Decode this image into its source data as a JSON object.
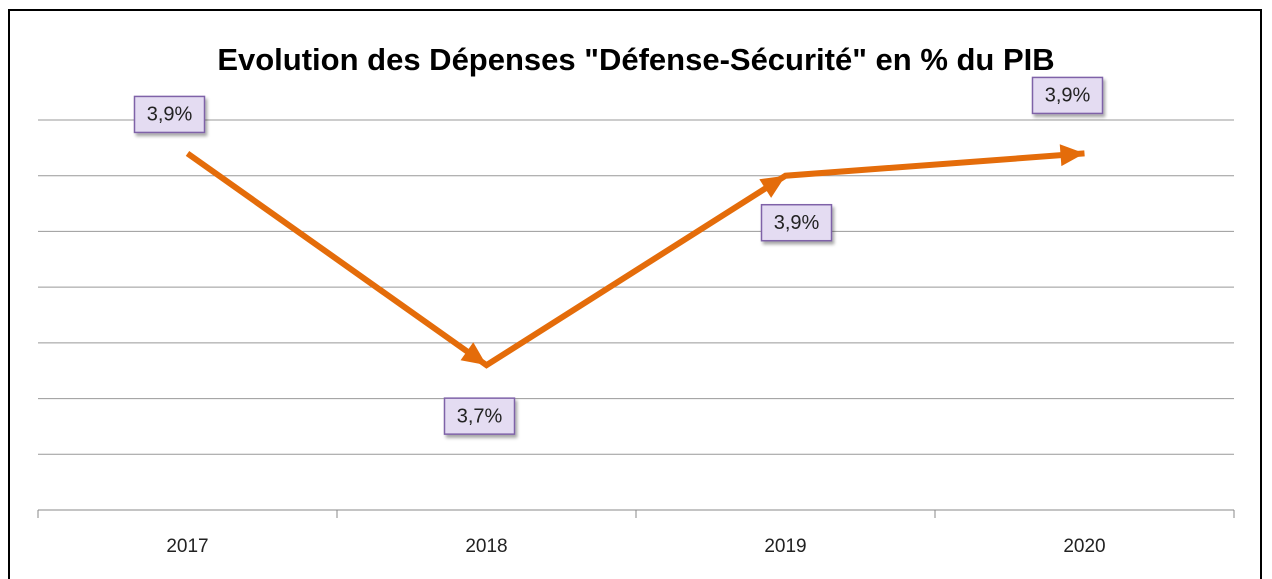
{
  "chart_data": {
    "type": "line",
    "title": "Evolution des Dépenses \"Défense-Sécurité\" en % du PIB",
    "categories": [
      "2017",
      "2018",
      "2019",
      "2020"
    ],
    "values": [
      3.92,
      3.73,
      3.9,
      3.92
    ],
    "value_labels": [
      "3,9%",
      "3,7%",
      "3,9%",
      "3,9%"
    ],
    "color": "#e46c0a",
    "ylim": [
      3.6,
      3.95
    ],
    "yticks": [
      3.6,
      3.65,
      3.7,
      3.75,
      3.8,
      3.85,
      3.9,
      3.95
    ],
    "grid": true
  }
}
